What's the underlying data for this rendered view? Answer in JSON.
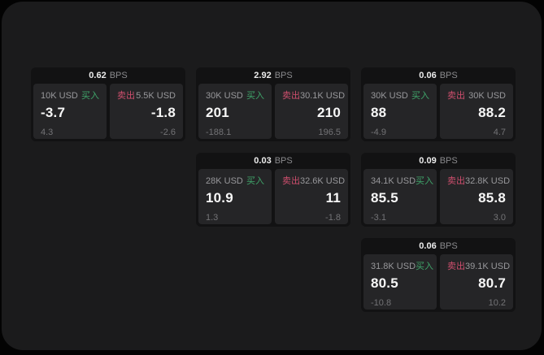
{
  "labels": {
    "bps_unit": "BPS",
    "buy": "买入",
    "sell": "卖出"
  },
  "colors": {
    "buy": "#3fa56a",
    "sell": "#cf4f6e"
  },
  "cards": [
    {
      "row": 0,
      "col": 0,
      "bps": "0.62",
      "buy": {
        "amount": "10K USD",
        "value": "-3.7",
        "delta": "4.3"
      },
      "sell": {
        "amount": "5.5K USD",
        "value": "-1.8",
        "delta": "-2.6"
      }
    },
    {
      "row": 0,
      "col": 1,
      "bps": "2.92",
      "buy": {
        "amount": "30K USD",
        "value": "201",
        "delta": "-188.1"
      },
      "sell": {
        "amount": "30.1K USD",
        "value": "210",
        "delta": "196.5"
      }
    },
    {
      "row": 0,
      "col": 2,
      "bps": "0.06",
      "buy": {
        "amount": "30K USD",
        "value": "88",
        "delta": "-4.9"
      },
      "sell": {
        "amount": "30K USD",
        "value": "88.2",
        "delta": "4.7"
      }
    },
    {
      "row": 1,
      "col": 1,
      "bps": "0.03",
      "buy": {
        "amount": "28K USD",
        "value": "10.9",
        "delta": "1.3"
      },
      "sell": {
        "amount": "32.6K USD",
        "value": "11",
        "delta": "-1.8"
      }
    },
    {
      "row": 1,
      "col": 2,
      "bps": "0.09",
      "buy": {
        "amount": "34.1K USD",
        "value": "85.5",
        "delta": "-3.1"
      },
      "sell": {
        "amount": "32.8K USD",
        "value": "85.8",
        "delta": "3.0"
      }
    },
    {
      "row": 2,
      "col": 2,
      "bps": "0.06",
      "buy": {
        "amount": "31.8K USD",
        "value": "80.5",
        "delta": "-10.8"
      },
      "sell": {
        "amount": "39.1K USD",
        "value": "80.7",
        "delta": "10.2"
      }
    }
  ]
}
